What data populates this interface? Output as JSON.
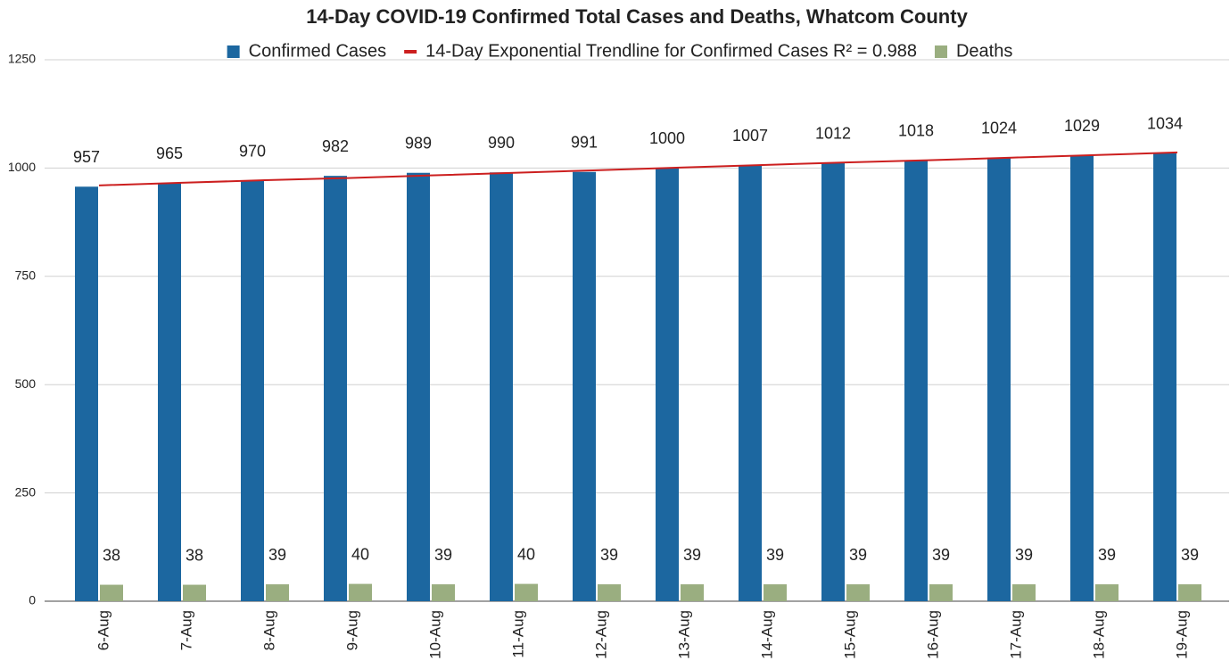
{
  "chart_data": {
    "type": "bar",
    "title": "14-Day COVID-19 Confirmed Total Cases and Deaths, Whatcom County",
    "categories": [
      "6-Aug",
      "7-Aug",
      "8-Aug",
      "9-Aug",
      "10-Aug",
      "11-Aug",
      "12-Aug",
      "13-Aug",
      "14-Aug",
      "15-Aug",
      "16-Aug",
      "17-Aug",
      "18-Aug",
      "19-Aug"
    ],
    "series": [
      {
        "name": "Confirmed Cases",
        "type": "bar",
        "color": "#1c67a0",
        "values": [
          957,
          965,
          970,
          982,
          989,
          990,
          991,
          1000,
          1007,
          1012,
          1018,
          1024,
          1029,
          1034
        ]
      },
      {
        "name": "14-Day Exponential Trendline for Confirmed Cases R² = 0.988",
        "type": "line",
        "color": "#cc1f1f",
        "values": [
          960,
          966,
          972,
          977,
          983,
          989,
          995,
          1001,
          1007,
          1013,
          1018,
          1024,
          1030,
          1036
        ]
      },
      {
        "name": "Deaths",
        "type": "bar",
        "color": "#9aae80",
        "values": [
          38,
          38,
          39,
          40,
          39,
          40,
          39,
          39,
          39,
          39,
          39,
          39,
          39,
          39
        ]
      }
    ],
    "ylim": [
      0,
      1250
    ],
    "yticks": [
      0,
      250,
      500,
      750,
      1000,
      1250
    ],
    "grid": true,
    "legend": "top"
  }
}
